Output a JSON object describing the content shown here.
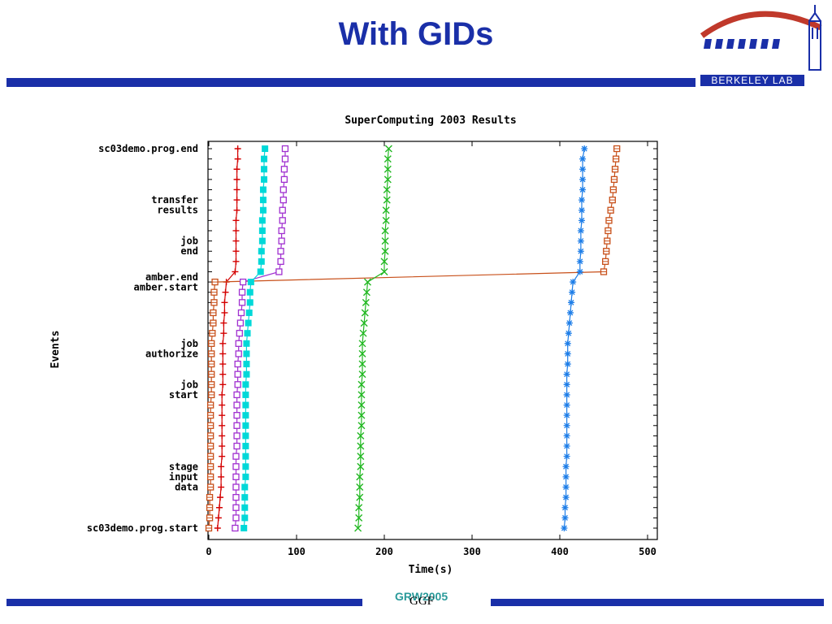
{
  "slide": {
    "title": "With GIDs",
    "footer_a": "GRW2005",
    "footer_b": "GGF",
    "logo_text": "BERKELEY LAB",
    "brand_color": "#1a2fa8"
  },
  "chart_data": {
    "type": "line",
    "title": "SuperComputing 2003 Results",
    "xlabel": "Time(s)",
    "ylabel": "Events",
    "xlim": [
      0,
      500
    ],
    "ylim": [
      0,
      37
    ],
    "x_ticks": [
      0,
      100,
      200,
      300,
      400,
      500
    ],
    "y_ticks": [
      {
        "value": 0,
        "label": [
          "sc03demo.prog.start"
        ]
      },
      {
        "value": 5,
        "label": [
          "stage",
          "input",
          "data"
        ]
      },
      {
        "value": 13.5,
        "label": [
          "job",
          "start"
        ]
      },
      {
        "value": 17.5,
        "label": [
          "job",
          "authorize"
        ]
      },
      {
        "value": 23.5,
        "label": [
          "amber.start"
        ]
      },
      {
        "value": 24.5,
        "label": [
          "amber.end"
        ]
      },
      {
        "value": 27.5,
        "label": [
          "job",
          "end"
        ]
      },
      {
        "value": 31.5,
        "label": [
          "transfer",
          "results"
        ]
      },
      {
        "value": 37,
        "label": [
          "sc03demo.prog.end"
        ]
      }
    ],
    "grid": false,
    "legend": "none",
    "series": [
      {
        "color": "#d40000",
        "marker": "plus",
        "x": [
          10,
          11,
          12,
          13,
          14,
          14,
          14,
          15,
          15,
          15,
          15,
          15,
          15,
          15,
          16,
          16,
          16,
          16,
          16,
          17,
          17,
          18,
          18,
          19,
          20,
          30,
          31,
          31,
          31,
          31,
          31,
          32,
          32,
          32,
          32,
          32,
          33,
          33
        ],
        "y": [
          0,
          1,
          2,
          3,
          4,
          5,
          6,
          7,
          8,
          9,
          10,
          11,
          12,
          13,
          14,
          15,
          16,
          17,
          18,
          19,
          20,
          21,
          22,
          23,
          24,
          25,
          26,
          27,
          28,
          29,
          30,
          31,
          32,
          33,
          34,
          35,
          36,
          37
        ]
      },
      {
        "color": "#c8501a",
        "marker": "box-dot",
        "x": [
          0,
          1,
          1,
          1,
          2,
          2,
          2,
          2,
          2,
          2,
          2,
          2,
          2,
          3,
          3,
          3,
          3,
          3,
          3,
          4,
          5,
          5,
          6,
          6,
          7,
          450,
          452,
          453,
          454,
          455,
          456,
          458,
          460,
          461,
          462,
          463,
          464,
          465
        ],
        "y": [
          0,
          1,
          2,
          3,
          4,
          5,
          6,
          7,
          8,
          9,
          10,
          11,
          12,
          13,
          14,
          15,
          16,
          17,
          18,
          19,
          20,
          21,
          22,
          23,
          24,
          25,
          26,
          27,
          28,
          29,
          30,
          31,
          32,
          33,
          34,
          35,
          36,
          37
        ]
      },
      {
        "color": "#a030d0",
        "marker": "box",
        "x": [
          30,
          31,
          31,
          31,
          31,
          31,
          31,
          31,
          32,
          32,
          32,
          32,
          32,
          32,
          33,
          33,
          33,
          34,
          34,
          35,
          36,
          37,
          38,
          38,
          39,
          80,
          82,
          82,
          83,
          83,
          84,
          84,
          85,
          85,
          86,
          86,
          87,
          87
        ],
        "y": [
          0,
          1,
          2,
          3,
          4,
          5,
          6,
          7,
          8,
          9,
          10,
          11,
          12,
          13,
          14,
          15,
          16,
          17,
          18,
          19,
          20,
          21,
          22,
          23,
          24,
          25,
          26,
          27,
          28,
          29,
          30,
          31,
          32,
          33,
          34,
          35,
          36,
          37
        ]
      },
      {
        "color": "#00d8d8",
        "marker": "filled-box",
        "x": [
          40,
          41,
          41,
          41,
          41,
          42,
          42,
          42,
          42,
          42,
          42,
          42,
          42,
          42,
          42,
          43,
          43,
          43,
          43,
          44,
          45,
          46,
          47,
          47,
          48,
          59,
          60,
          60,
          61,
          61,
          61,
          62,
          62,
          62,
          63,
          63,
          63,
          64
        ],
        "y": [
          0,
          1,
          2,
          3,
          4,
          5,
          6,
          7,
          8,
          9,
          10,
          11,
          12,
          13,
          14,
          15,
          16,
          17,
          18,
          19,
          20,
          21,
          22,
          23,
          24,
          25,
          26,
          27,
          28,
          29,
          30,
          31,
          32,
          33,
          34,
          35,
          36,
          37
        ]
      },
      {
        "color": "#22b822",
        "marker": "cross",
        "x": [
          170,
          171,
          171,
          172,
          172,
          172,
          173,
          173,
          173,
          173,
          174,
          174,
          174,
          174,
          174,
          175,
          175,
          175,
          175,
          176,
          177,
          178,
          179,
          180,
          181,
          200,
          200,
          201,
          201,
          201,
          202,
          202,
          203,
          203,
          204,
          204,
          204,
          205
        ],
        "y": [
          0,
          1,
          2,
          3,
          4,
          5,
          6,
          7,
          8,
          9,
          10,
          11,
          12,
          13,
          14,
          15,
          16,
          17,
          18,
          19,
          20,
          21,
          22,
          23,
          24,
          25,
          26,
          27,
          28,
          29,
          30,
          31,
          32,
          33,
          34,
          35,
          36,
          37
        ]
      },
      {
        "color": "#1e7ee8",
        "marker": "star",
        "x": [
          405,
          406,
          406,
          407,
          407,
          407,
          407,
          408,
          408,
          408,
          408,
          408,
          408,
          408,
          408,
          408,
          409,
          409,
          409,
          410,
          411,
          412,
          413,
          414,
          415,
          423,
          423,
          424,
          424,
          424,
          425,
          425,
          425,
          426,
          426,
          426,
          426,
          428
        ],
        "y": [
          0,
          1,
          2,
          3,
          4,
          5,
          6,
          7,
          8,
          9,
          10,
          11,
          12,
          13,
          14,
          15,
          16,
          17,
          18,
          19,
          20,
          21,
          22,
          23,
          24,
          25,
          26,
          27,
          28,
          29,
          30,
          31,
          32,
          33,
          34,
          35,
          36,
          37
        ]
      }
    ]
  }
}
